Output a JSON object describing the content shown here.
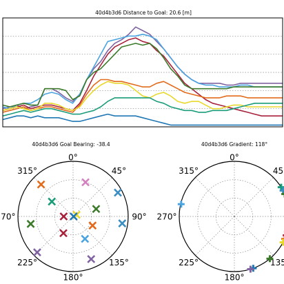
{
  "colors": {
    "red": "#a8213b",
    "blue": "#1f77b4",
    "lblue": "#4aa3df",
    "purple": "#8064a2",
    "orange": "#e26b1b",
    "green": "#3b7a2a",
    "teal": "#1a9c7a",
    "yellow": "#e8d82c",
    "pink": "#d57fbf",
    "cblue": "#3b8ec2"
  },
  "chart_data": [
    {
      "type": "line",
      "title": "40d4b3d6 Distance to Goal: 20.6 [m]",
      "grid": true,
      "x": [
        0,
        1,
        2,
        3,
        4,
        5,
        6,
        7,
        8,
        9,
        10,
        11,
        12,
        13,
        14,
        15,
        16,
        17,
        18,
        19,
        20,
        21,
        22,
        23,
        24,
        25,
        26,
        27,
        28,
        29,
        30,
        31,
        32,
        33,
        34,
        35,
        36,
        37,
        38,
        39,
        40
      ],
      "ylim": [
        0,
        6
      ],
      "series": [
        {
          "color": "#8064a2",
          "values": [
            1.0,
            1.1,
            1.2,
            1.0,
            1.1,
            1.2,
            2.1,
            2.1,
            1.9,
            1.6,
            1.4,
            1.8,
            2.6,
            3.2,
            3.6,
            4.2,
            4.6,
            4.8,
            5.1,
            5.5,
            5.3,
            5.1,
            4.7,
            4.3,
            3.8,
            3.3,
            2.9,
            2.6,
            2.4,
            2.4,
            2.4,
            2.4,
            2.3,
            2.3,
            2.4,
            2.4,
            2.4,
            2.4,
            2.4,
            2.4,
            2.4
          ]
        },
        {
          "color": "#4aa3df",
          "values": [
            1.1,
            1.0,
            1.2,
            1.3,
            1.3,
            1.5,
            1.8,
            1.9,
            1.8,
            1.5,
            1.3,
            1.8,
            2.6,
            3.3,
            4.0,
            4.7,
            4.8,
            4.9,
            5.0,
            5.0,
            5.1,
            5.0,
            4.8,
            4.3,
            3.8,
            3.3,
            2.9,
            2.6,
            2.4,
            2.3,
            2.3,
            2.2,
            2.2,
            2.2,
            2.3,
            2.3,
            2.2,
            2.2,
            2.2,
            2.2,
            2.2
          ]
        },
        {
          "color": "#a8213b",
          "values": [
            0.9,
            1.0,
            1.1,
            1.2,
            1.0,
            1.1,
            1.2,
            1.2,
            1.1,
            1.0,
            0.9,
            1.3,
            2.0,
            2.8,
            3.4,
            4.0,
            4.4,
            4.6,
            4.8,
            4.9,
            4.7,
            4.6,
            4.2,
            3.9,
            3.4,
            2.9,
            2.4,
            2.1,
            1.8,
            1.5,
            1.3,
            1.2,
            1.1,
            1.0,
            0.9,
            0.8,
            0.7,
            0.6,
            0.6,
            0.6,
            0.6
          ]
        },
        {
          "color": "#e26b1b",
          "values": [
            0.8,
            0.9,
            1.0,
            1.1,
            0.9,
            1.0,
            1.1,
            1.1,
            1.0,
            0.9,
            0.8,
            1.2,
            1.8,
            2.3,
            2.6,
            2.6,
            2.5,
            2.5,
            2.4,
            2.3,
            2.2,
            2.2,
            2.4,
            2.5,
            2.3,
            2.1,
            1.9,
            1.8,
            1.7,
            1.6,
            1.6,
            1.6,
            1.7,
            1.7,
            1.7,
            1.6,
            1.6,
            1.6,
            1.6,
            1.6,
            1.6
          ]
        },
        {
          "color": "#3b7a2a",
          "values": [
            1.2,
            1.1,
            1.2,
            1.3,
            1.2,
            1.2,
            2.1,
            2.1,
            2.1,
            2.0,
            1.5,
            1.7,
            2.6,
            3.0,
            3.2,
            3.6,
            4.0,
            4.4,
            4.5,
            4.6,
            4.5,
            4.6,
            4.3,
            3.8,
            3.2,
            2.8,
            2.3,
            2.1,
            2.1,
            2.1,
            2.1,
            2.1,
            2.1,
            2.2,
            2.2,
            2.2,
            2.2,
            2.2,
            2.2,
            2.2,
            2.2
          ]
        },
        {
          "color": "#e8d82c",
          "values": [
            0.9,
            1.0,
            1.1,
            1.0,
            0.9,
            1.0,
            1.3,
            1.3,
            1.2,
            1.0,
            0.9,
            1.1,
            1.6,
            2.0,
            2.3,
            2.5,
            2.4,
            2.4,
            2.3,
            2.0,
            1.7,
            1.6,
            1.8,
            1.9,
            1.7,
            1.4,
            1.3,
            1.4,
            1.4,
            1.2,
            1.0,
            1.0,
            1.1,
            1.2,
            1.2,
            1.1,
            1.1,
            1.1,
            1.1,
            1.1,
            1.1
          ]
        },
        {
          "color": "#1a9c7a",
          "values": [
            0.6,
            0.7,
            0.8,
            0.9,
            0.8,
            0.9,
            1.0,
            1.0,
            0.9,
            0.8,
            0.7,
            0.7,
            0.8,
            0.9,
            1.1,
            1.4,
            1.6,
            1.6,
            1.6,
            1.6,
            1.6,
            1.6,
            1.4,
            1.3,
            1.1,
            1.0,
            0.9,
            0.9,
            0.8,
            0.8,
            0.9,
            0.9,
            0.9,
            1.0,
            1.1,
            1.2,
            1.3,
            1.3,
            1.3,
            1.3,
            1.3
          ]
        },
        {
          "color": "#1f77b4",
          "values": [
            0.4,
            0.5,
            0.6,
            0.6,
            0.5,
            0.6,
            0.5,
            0.5,
            0.5,
            0.4,
            0.3,
            0.3,
            0.4,
            0.5,
            0.6,
            0.7,
            0.6,
            0.6,
            0.6,
            0.6,
            0.5,
            0.4,
            0.3,
            0.2,
            0.1,
            0.1,
            0.1,
            0.1,
            0.1,
            0.1,
            0.1,
            0.1,
            0.1,
            0.1,
            0.1,
            0.1,
            0.1,
            0.1,
            0.1,
            0.1,
            0.1
          ]
        }
      ]
    },
    {
      "type": "scatter",
      "title": "40d4b3d6 Goal Bearing: -38.4",
      "subtype": "polar",
      "grid": true,
      "tick_labels": [
        "0°",
        "45°",
        "90°",
        "135°",
        "180°",
        "225°",
        "270°",
        "315°"
      ],
      "rlim": [
        0,
        1
      ],
      "points": [
        {
          "angle_deg": 20,
          "r": 0.66,
          "color": "#d57fbf"
        },
        {
          "angle_deg": 315,
          "r": 0.82,
          "color": "#e26b1b"
        },
        {
          "angle_deg": 62,
          "r": 0.92,
          "color": "#3b8ec2"
        },
        {
          "angle_deg": 305,
          "r": 0.47,
          "color": "#1a9c7a"
        },
        {
          "angle_deg": 72,
          "r": 0.44,
          "color": "#3b7a2a"
        },
        {
          "angle_deg": 65,
          "r": 0.07,
          "color": "#e8d82c"
        },
        {
          "angle_deg": 270,
          "r": 0.17,
          "color": "#a8213b"
        },
        {
          "angle_deg": 90,
          "r": 0.01,
          "color": "#1f77b4"
        },
        {
          "angle_deg": 260,
          "r": 0.78,
          "color": "#3b7a2a"
        },
        {
          "angle_deg": 115,
          "r": 0.39,
          "color": "#e26b1b"
        },
        {
          "angle_deg": 98,
          "r": 0.9,
          "color": "#3b8ec2"
        },
        {
          "angle_deg": 210,
          "r": 0.35,
          "color": "#a8213b"
        },
        {
          "angle_deg": 152,
          "r": 0.46,
          "color": "#4aa3df"
        },
        {
          "angle_deg": 225,
          "r": 0.92,
          "color": "#8064a2"
        },
        {
          "angle_deg": 157,
          "r": 0.84,
          "color": "#8064a2"
        }
      ]
    },
    {
      "type": "scatter",
      "title": "40d4b3d6 Gradient: 118°",
      "subtype": "polar",
      "grid": true,
      "tick_labels": [
        "0°",
        "45°",
        "90°",
        "135°",
        "180°",
        "225°",
        "270°",
        "315°"
      ],
      "rlim": [
        0,
        1
      ],
      "points": [
        {
          "angle_deg": 283,
          "r": 0.99,
          "color": "#4aa3df"
        },
        {
          "angle_deg": 58,
          "r": 1.0,
          "color": "#1a9c7a"
        },
        {
          "angle_deg": 62,
          "r": 1.0,
          "color": "#3b8ec2"
        },
        {
          "angle_deg": 66,
          "r": 1.0,
          "color": "#3b7a2a"
        },
        {
          "angle_deg": 106,
          "r": 1.0,
          "color": "#a8213b"
        },
        {
          "angle_deg": 110,
          "r": 1.0,
          "color": "#a8213b"
        },
        {
          "angle_deg": 114,
          "r": 1.0,
          "color": "#e26b1b"
        },
        {
          "angle_deg": 118,
          "r": 1.0,
          "color": "#e8d82c"
        },
        {
          "angle_deg": 140,
          "r": 1.0,
          "color": "#3b7a2a"
        },
        {
          "angle_deg": 160,
          "r": 1.0,
          "color": "#1f77b4"
        },
        {
          "angle_deg": 163,
          "r": 1.0,
          "color": "#8064a2"
        }
      ]
    }
  ]
}
